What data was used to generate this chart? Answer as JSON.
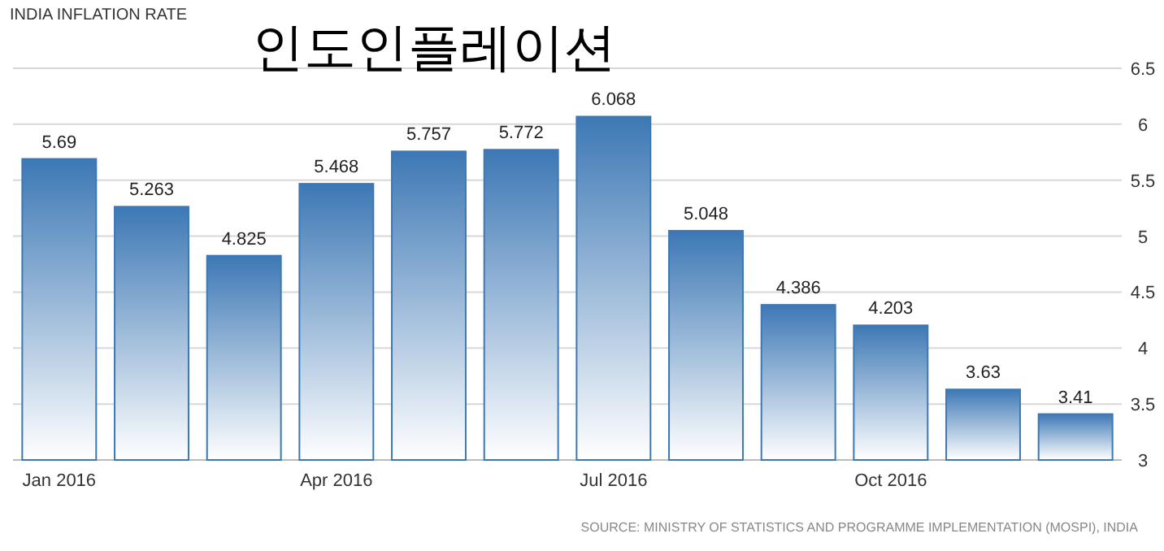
{
  "chart_data": {
    "type": "bar",
    "title": "INDIA INFLATION RATE",
    "subtitle": "인도인플레이션",
    "categories": [
      "Jan 2016",
      null,
      null,
      "Apr 2016",
      null,
      null,
      "Jul 2016",
      null,
      null,
      "Oct 2016",
      null,
      null
    ],
    "values": [
      5.69,
      5.263,
      4.825,
      5.468,
      5.757,
      5.772,
      6.068,
      5.048,
      4.386,
      4.203,
      3.63,
      3.41
    ],
    "color": "#3d78b5",
    "ylim": [
      3,
      6.5
    ],
    "yticks": [
      3,
      3.5,
      4,
      4.5,
      5,
      5.5,
      6,
      6.5
    ],
    "grid": "y",
    "data_labels": true,
    "annotations": [
      "SOURCE: MINISTRY OF STATISTICS AND PROGRAMME IMPLEMENTATION (MOSPI), INDIA"
    ]
  }
}
